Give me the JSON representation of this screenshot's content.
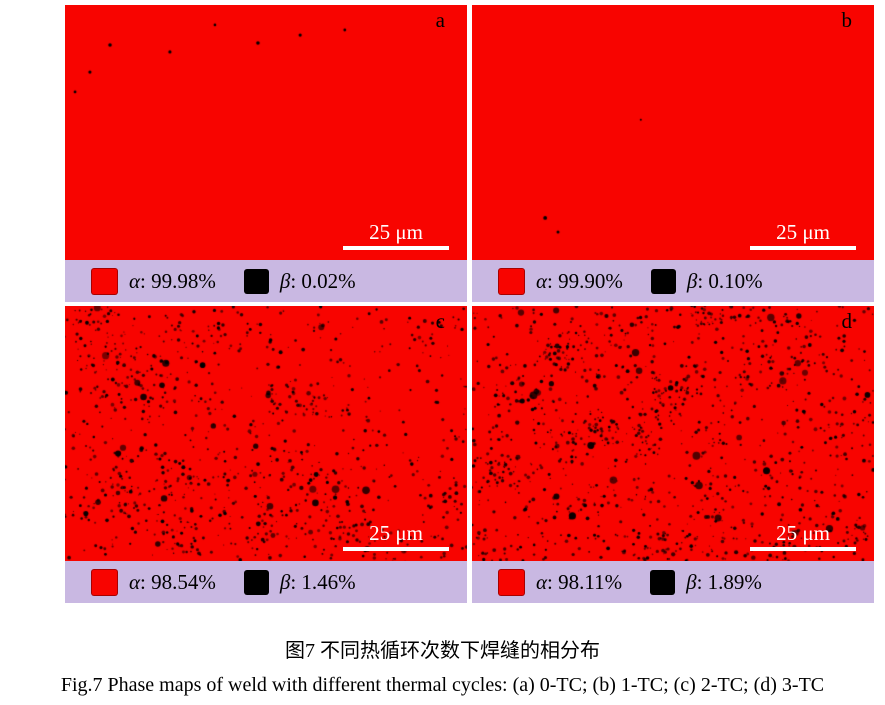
{
  "colors": {
    "alpha_red": "#f80400",
    "beta_black": "#000000",
    "legend_bg": "#c9b8e2",
    "scale_white": "#ffffff",
    "label_black": "#000000"
  },
  "figure": {
    "caption_zh": "图7 不同热循环次数下焊缝的相分布",
    "caption_en": "Fig.7  Phase maps of weld with different thermal cycles: (a) 0-TC; (b) 1-TC; (c) 2-TC; (d) 3-TC"
  },
  "panels": [
    {
      "label": "a",
      "alpha_symbol": "α",
      "alpha_value": ": 99.98%",
      "beta_symbol": "β",
      "beta_value": ": 0.02%",
      "scale_label": "25 μm",
      "speckle": {
        "seed": 11,
        "noise_count": 0,
        "dots": [
          [
            0.112,
            0.157,
            1.8
          ],
          [
            0.261,
            0.184,
            1.6
          ],
          [
            0.373,
            0.078,
            1.3
          ],
          [
            0.48,
            0.149,
            1.8
          ],
          [
            0.585,
            0.118,
            1.6
          ],
          [
            0.696,
            0.098,
            1.4
          ],
          [
            0.062,
            0.263,
            1.6
          ],
          [
            0.025,
            0.341,
            1.4
          ]
        ]
      }
    },
    {
      "label": "b",
      "alpha_symbol": "α",
      "alpha_value": ": 99.90%",
      "beta_symbol": "β",
      "beta_value": ": 0.10%",
      "scale_label": "25 μm",
      "speckle": {
        "seed": 12,
        "noise_count": 0,
        "dots": [
          [
            0.182,
            0.835,
            1.9
          ],
          [
            0.214,
            0.89,
            1.5
          ],
          [
            0.42,
            0.45,
            1.0
          ]
        ]
      }
    },
    {
      "label": "c",
      "alpha_symbol": "α",
      "alpha_value": ": 98.54%",
      "beta_symbol": "β",
      "beta_value": ": 1.46%",
      "scale_label": "25 μm",
      "speckle": {
        "seed": 13,
        "noise_count": 1050,
        "dots": []
      }
    },
    {
      "label": "d",
      "alpha_symbol": "α",
      "alpha_value": ": 98.11%",
      "beta_symbol": "β",
      "beta_value": ": 1.89%",
      "scale_label": "25 μm",
      "speckle": {
        "seed": 14,
        "noise_count": 1320,
        "dots": []
      }
    }
  ]
}
